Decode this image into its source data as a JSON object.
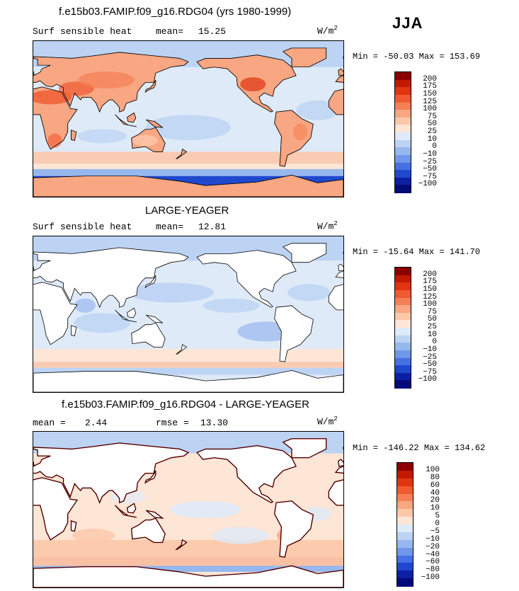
{
  "season": "JJA",
  "panels": [
    {
      "title": "f.e15b03.FAMIP.f09_g16.RDG04 (yrs 1980-1999)",
      "variable": "Surf sensible heat",
      "mean_label": "mean=",
      "mean": "15.25",
      "units": "W/m",
      "units_exp": "2",
      "min_label": "Min =",
      "min": "-50.03",
      "max_label": "Max =",
      "max": "153.69",
      "levels": [
        "200",
        "175",
        "150",
        "125",
        "100",
        "75",
        "50",
        "25",
        "10",
        "0",
        "−10",
        "−25",
        "−50",
        "−75",
        "−100"
      ],
      "colors": [
        "#8b0000",
        "#c11a00",
        "#e03510",
        "#f05a30",
        "#f58055",
        "#f9a682",
        "#fcc8aa",
        "#fde6d6",
        "#dfeaf8",
        "#bcd3f4",
        "#97b8ef",
        "#6f97ea",
        "#4670e4",
        "#2048cf",
        "#0d1fa3",
        "#050a7a"
      ],
      "land_visible": false,
      "mode": "full"
    },
    {
      "title": "LARGE-YEAGER",
      "variable": "Surf sensible heat",
      "mean_label": "mean=",
      "mean": "12.81",
      "units": "W/m",
      "units_exp": "2",
      "min_label": "Min =",
      "min": "-15.64",
      "max_label": "Max =",
      "max": "141.70",
      "levels": [
        "200",
        "175",
        "150",
        "125",
        "100",
        "75",
        "50",
        "25",
        "10",
        "0",
        "−10",
        "−25",
        "−50",
        "−75",
        "−100"
      ],
      "colors": [
        "#8b0000",
        "#c11a00",
        "#e03510",
        "#f05a30",
        "#f58055",
        "#f9a682",
        "#fcc8aa",
        "#fde6d6",
        "#dfeaf8",
        "#bcd3f4",
        "#97b8ef",
        "#6f97ea",
        "#4670e4",
        "#2048cf",
        "#0d1fa3",
        "#050a7a"
      ],
      "land_visible": true,
      "mode": "ocean"
    },
    {
      "title": "f.e15b03.FAMIP.f09_g16.RDG04 - LARGE-YEAGER",
      "variable": "",
      "mean_label": "mean =",
      "mean": "2.44",
      "rmse_label": "rmse =",
      "rmse": "13.30",
      "units": "W/m",
      "units_exp": "2",
      "min_label": "Min =",
      "min": "-146.22",
      "max_label": "Max =",
      "max": "134.62",
      "levels": [
        "100",
        "80",
        "60",
        "40",
        "20",
        "10",
        "5",
        "0",
        "−5",
        "−10",
        "−20",
        "−40",
        "−60",
        "−80",
        "−100"
      ],
      "colors": [
        "#8b0000",
        "#c11a00",
        "#e03510",
        "#f05a30",
        "#f58055",
        "#f9a682",
        "#fcc8aa",
        "#fde6d6",
        "#dfeaf8",
        "#bcd3f4",
        "#97b8ef",
        "#6f97ea",
        "#4670e4",
        "#2048cf",
        "#0d1fa3",
        "#050a7a"
      ],
      "land_visible": true,
      "mode": "diff"
    }
  ]
}
